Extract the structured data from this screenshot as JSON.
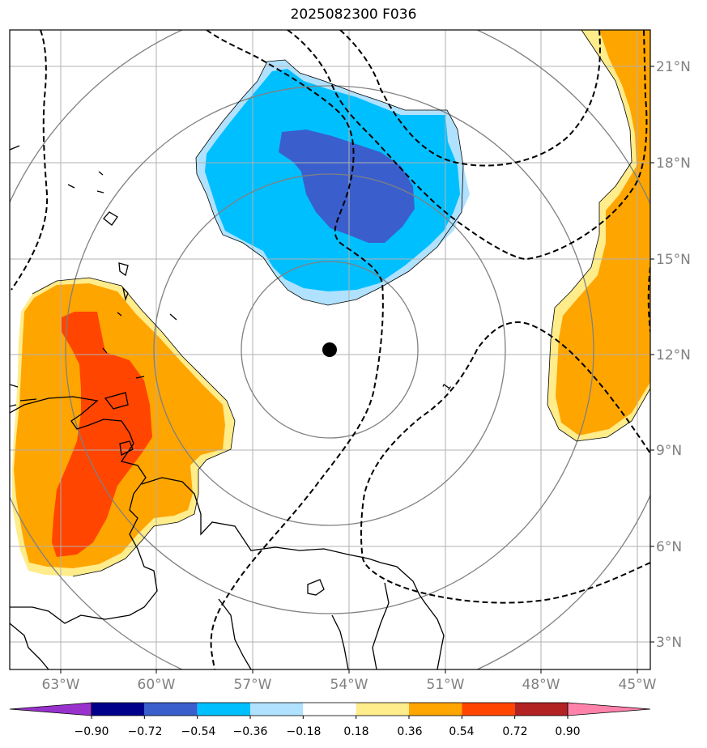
{
  "title": "2025082300 F036",
  "map": {
    "lon_labels": [
      "63°W",
      "60°W",
      "57°W",
      "54°W",
      "51°W",
      "48°W",
      "45°W"
    ],
    "lat_labels": [
      "21°N",
      "18°N",
      "15°N",
      "12°N",
      "9°N",
      "6°N",
      "3°N"
    ],
    "contour_label": "1",
    "storm_center": {
      "lon": "54°W",
      "lat": "12°N"
    }
  },
  "colorbar": {
    "labels": [
      "−0.90",
      "−0.72",
      "−0.54",
      "−0.36",
      "−0.18",
      "0.18",
      "0.36",
      "0.54",
      "0.72",
      "0.90"
    ],
    "colors": [
      "#9932CC",
      "#00008B",
      "#3A5FCD",
      "#00BFFF",
      "#B0E2FF",
      "#FFFFFF",
      "#FFEC8B",
      "#FFA500",
      "#FF4500",
      "#B22222",
      "#FF82AB"
    ]
  }
}
